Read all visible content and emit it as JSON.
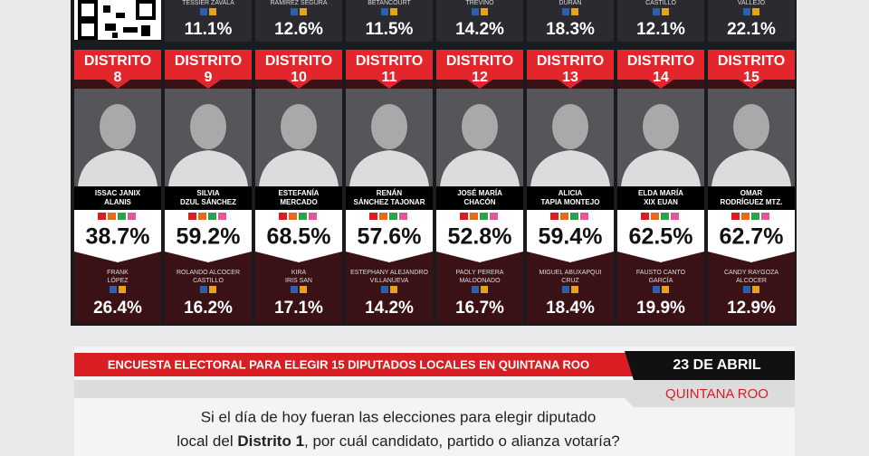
{
  "top_row": [
    {
      "name": "TESSIER ZAVALA",
      "percent": "11.1%"
    },
    {
      "name": "RAMÍREZ SEGURA",
      "percent": "12.6%"
    },
    {
      "name": "BETANCOURT",
      "percent": "11.5%"
    },
    {
      "name": "TREVIÑO",
      "percent": "14.2%"
    },
    {
      "name": "DURÁN",
      "percent": "18.3%"
    },
    {
      "name": "CASTILLO",
      "percent": "12.1%"
    },
    {
      "name": "VALLEJO",
      "percent": "22.1%"
    }
  ],
  "districts": [
    {
      "label": "DISTRITO",
      "number": "8",
      "leader": [
        "ISSAC JANIX",
        "ALANIS"
      ],
      "leader_percent": "38.7%",
      "runner_up": [
        "FRANK",
        "LÓPEZ"
      ],
      "runner_up_percent": "26.4%"
    },
    {
      "label": "DISTRITO",
      "number": "9",
      "leader": [
        "SILVIA",
        "DZUL SÁNCHEZ"
      ],
      "leader_percent": "59.2%",
      "runner_up": [
        "ROLANDO ALCOCER",
        "CASTILLO"
      ],
      "runner_up_percent": "16.2%"
    },
    {
      "label": "DISTRITO",
      "number": "10",
      "leader": [
        "ESTEFANÍA",
        "MERCADO"
      ],
      "leader_percent": "68.5%",
      "runner_up": [
        "KIRA",
        "IRIS SAN"
      ],
      "runner_up_percent": "17.1%"
    },
    {
      "label": "DISTRITO",
      "number": "11",
      "leader": [
        "RENÁN",
        "SÁNCHEZ TAJONAR"
      ],
      "leader_percent": "57.6%",
      "runner_up": [
        "ESTEPHANY ALEJANDRO",
        "VILLANUEVA"
      ],
      "runner_up_percent": "14.2%"
    },
    {
      "label": "DISTRITO",
      "number": "12",
      "leader": [
        "JOSÉ MARÍA",
        "CHACÓN"
      ],
      "leader_percent": "52.8%",
      "runner_up": [
        "PAOLY PERERA",
        "MALDONADO"
      ],
      "runner_up_percent": "16.7%"
    },
    {
      "label": "DISTRITO",
      "number": "13",
      "leader": [
        "ALICIA",
        "TAPIA MONTEJO"
      ],
      "leader_percent": "59.4%",
      "runner_up": [
        "MIGUEL ABUXAPQUI",
        "CRUZ"
      ],
      "runner_up_percent": "18.4%"
    },
    {
      "label": "DISTRITO",
      "number": "14",
      "leader": [
        "ELDA MARÍA",
        "XIX EUAN"
      ],
      "leader_percent": "62.5%",
      "runner_up": [
        "FAUSTO CANTO",
        "GARCÍA"
      ],
      "runner_up_percent": "19.9%"
    },
    {
      "label": "DISTRITO",
      "number": "15",
      "leader": [
        "OMAR",
        "RODRÍGUEZ MTZ."
      ],
      "leader_percent": "62.7%",
      "runner_up": [
        "CANDY RAYGOZA",
        "ALCOCER"
      ],
      "runner_up_percent": "12.9%"
    }
  ],
  "footer": {
    "banner": "ENCUESTA ELECTORAL PARA ELEGIR 15 DIPUTADOS LOCALES EN QUINTANA ROO",
    "date": "23 DE ABRIL",
    "state": "QUINTANA ROO",
    "question": [
      "Si el día de hoy fueran las elecciones para elegir diputado",
      "local del ",
      "Distrito 1",
      ", por cuál candidato, partido o alianza votaría?"
    ]
  }
}
